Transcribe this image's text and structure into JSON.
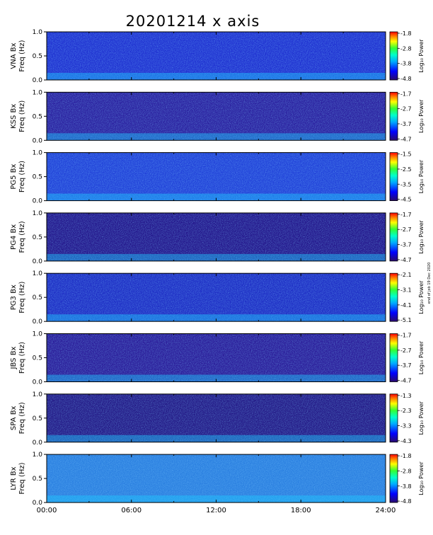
{
  "title": "20201214  x axis",
  "side_note": "end of job 19 Dec 2020",
  "chart_data": {
    "type": "heatmap",
    "title": "20201214  x axis",
    "x_ticks": [
      "00:00",
      "06:00",
      "12:00",
      "18:00",
      "24:00"
    ],
    "xlim": [
      0,
      24
    ],
    "y_ticks": [
      "0.0",
      "0.5",
      "1.0"
    ],
    "ylim": [
      0,
      1.0
    ],
    "ylabel": "Freq (Hz)",
    "colorbar_label": "Log₁₀ Power",
    "panels": [
      {
        "station": "VNA Bx",
        "cb_ticks": [
          "-1.8",
          "-2.8",
          "-3.8",
          "-4.8"
        ],
        "cmin": -4.8,
        "cmax": -1.8
      },
      {
        "station": "KSS Bx",
        "cb_ticks": [
          "-1.7",
          "-2.7",
          "-3.7",
          "-4.7"
        ],
        "cmin": -4.7,
        "cmax": -1.7
      },
      {
        "station": "PG5 Bx",
        "cb_ticks": [
          "-1.5",
          "-2.5",
          "-3.5",
          "-4.5"
        ],
        "cmin": -4.5,
        "cmax": -1.5
      },
      {
        "station": "PG4 Bx",
        "cb_ticks": [
          "-1.7",
          "-2.7",
          "-3.7",
          "-4.7"
        ],
        "cmin": -4.7,
        "cmax": -1.7
      },
      {
        "station": "PG3 Bx",
        "cb_ticks": [
          "-2.1",
          "-3.1",
          "-4.1",
          "-5.1"
        ],
        "cmin": -5.1,
        "cmax": -2.1
      },
      {
        "station": "JBS Bx",
        "cb_ticks": [
          "-1.7",
          "-2.7",
          "-3.7",
          "-4.7"
        ],
        "cmin": -4.7,
        "cmax": -1.7
      },
      {
        "station": "SPA Bx",
        "cb_ticks": [
          "-1.3",
          "-2.3",
          "-3.3",
          "-4.3"
        ],
        "cmin": -4.3,
        "cmax": -1.3
      },
      {
        "station": "LYR Bx",
        "cb_ticks": [
          "-1.8",
          "-2.8",
          "-3.8",
          "-4.8"
        ],
        "cmin": -4.8,
        "cmax": -1.8
      }
    ]
  }
}
